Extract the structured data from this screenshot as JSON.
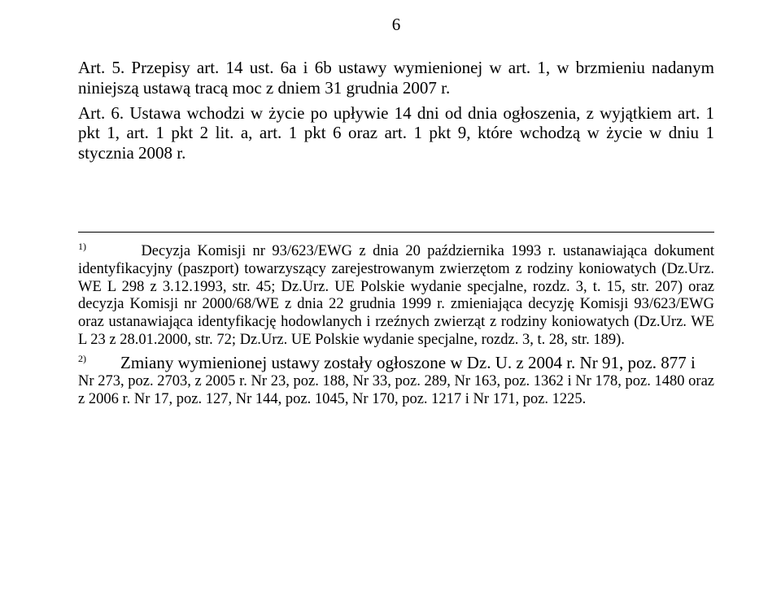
{
  "pageNumber": "6",
  "art5": "Art. 5. Przepisy art. 14 ust. 6a i 6b ustawy wymienionej w art. 1, w brzmieniu nadanym niniejszą ustawą tracą moc z dniem 31 grudnia 2007 r.",
  "art6": "Art. 6. Ustawa wchodzi w życie po upływie 14 dni od dnia ogłoszenia, z wyjątkiem art. 1 pkt 1, art. 1 pkt 2 lit. a, art. 1 pkt 6 oraz art. 1 pkt 9, które wchodzą w życie w dniu 1 stycznia 2008 r.",
  "footnote1_marker": "1)",
  "footnote1_body": "Decyzja Komisji nr 93/623/EWG z dnia 20 października 1993 r. ustanawiająca dokument identyfikacyjny (paszport) towarzyszący zarejestrowanym zwierzętom z rodziny koniowatych (Dz.Urz. WE L 298 z 3.12.1993, str. 45; Dz.Urz. UE Polskie wydanie specjalne, rozdz. 3, t. 15, str. 207) oraz decyzja Komisji nr 2000/68/WE z dnia 22 grudnia 1999 r. zmieniająca decyzję Komisji 93/623/EWG oraz ustanawiająca identyfikację hodowlanych i rzeźnych zwierząt z rodziny koniowatych (Dz.Urz. WE L 23 z 28.01.2000, str. 72; Dz.Urz. UE Polskie wydanie specjalne, rozdz. 3, t. 28, str. 189).",
  "footnote2_marker": "2)",
  "footnote2_lead": "Zmiany wymienionej ustawy zostały ogłoszone w Dz. U. z 2004 r. Nr 91, poz. 877 i",
  "footnote2_cont": "Nr 273, poz. 2703, z 2005 r. Nr 23, poz. 188, Nr 33, poz. 289, Nr 163, poz. 1362 i Nr 178, poz. 1480 oraz z 2006 r. Nr 17, poz. 127, Nr 144, poz. 1045, Nr 170, poz. 1217 i Nr 171, poz. 1225."
}
